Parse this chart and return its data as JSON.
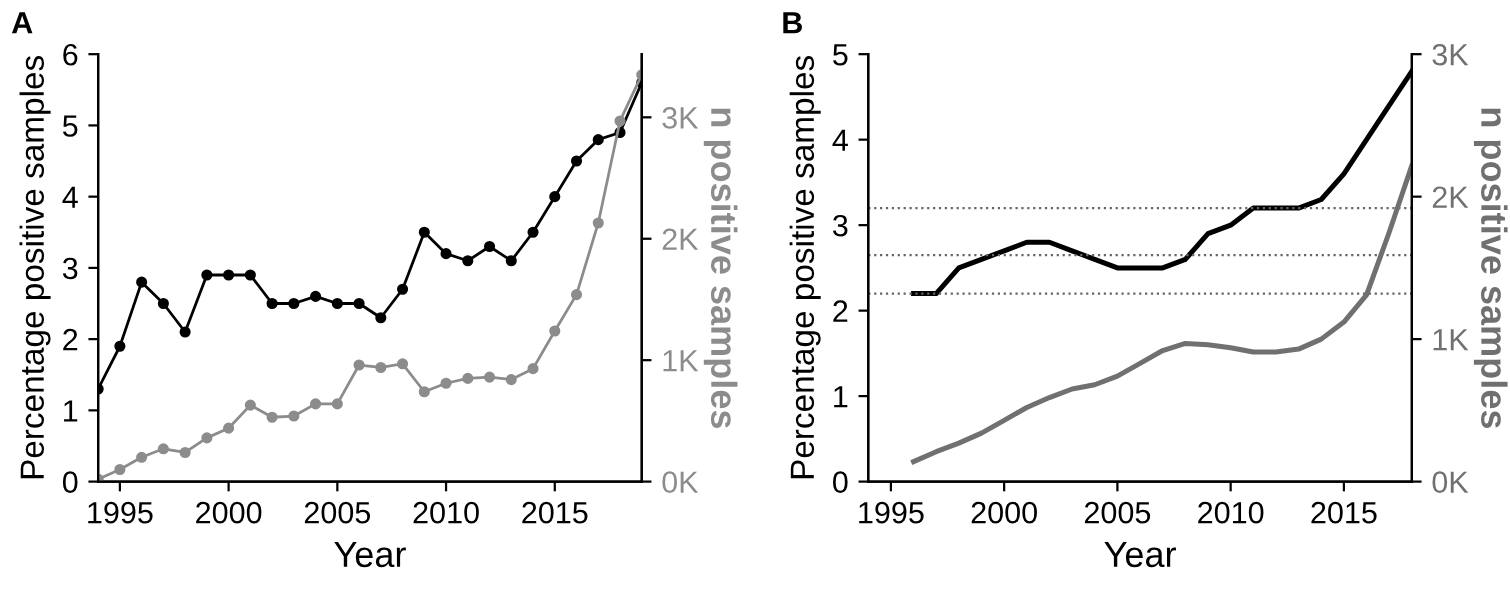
{
  "chart_data": [
    {
      "type": "line",
      "title": "A",
      "xlabel": "Year",
      "ylabel": "Percentage positive samples",
      "y2label": "n positive samples",
      "xlim": [
        1994,
        2019
      ],
      "xticks": [
        1995,
        2000,
        2005,
        2010,
        2015
      ],
      "ylim": [
        0,
        6
      ],
      "yticks": [
        0,
        1,
        2,
        3,
        4,
        5,
        6
      ],
      "y2lim": [
        0,
        3520
      ],
      "y2ticks": [
        {
          "value": 0,
          "label": "0K"
        },
        {
          "value": 1000,
          "label": "1K"
        },
        {
          "value": 2000,
          "label": "2K"
        },
        {
          "value": 3000,
          "label": "3K"
        }
      ],
      "x": [
        1994,
        1995,
        1996,
        1997,
        1998,
        1999,
        2000,
        2001,
        2002,
        2003,
        2004,
        2005,
        2006,
        2007,
        2008,
        2009,
        2010,
        2011,
        2012,
        2013,
        2014,
        2015,
        2016,
        2017,
        2018,
        2019
      ],
      "marker": "circle",
      "line_style": "solid",
      "grid": false,
      "legend": false,
      "series": [
        {
          "color": "#000000",
          "values": [
            1.3,
            1.9,
            2.8,
            2.5,
            2.1,
            2.9,
            2.9,
            2.9,
            2.5,
            2.5,
            2.6,
            2.5,
            2.5,
            2.3,
            2.7,
            3.5,
            3.2,
            3.1,
            3.3,
            3.1,
            3.5,
            4.0,
            4.5,
            4.8,
            4.9,
            5.6
          ]
        },
        {
          "color": "#8c8c8c",
          "axis": "y2",
          "values": [
            20,
            100,
            200,
            270,
            240,
            360,
            440,
            630,
            530,
            540,
            640,
            640,
            960,
            940,
            970,
            740,
            810,
            850,
            860,
            840,
            930,
            1240,
            1540,
            2130,
            2970,
            3350
          ]
        }
      ]
    },
    {
      "type": "line",
      "title": "B",
      "xlabel": "Year",
      "ylabel": "Percentage positive samples",
      "y2label": "n positive samples",
      "xlim": [
        1994,
        2018
      ],
      "xticks": [
        1995,
        2000,
        2005,
        2010,
        2015
      ],
      "ylim": [
        0,
        5
      ],
      "yticks": [
        0,
        1,
        2,
        3,
        4,
        5
      ],
      "y2lim": [
        0,
        3000
      ],
      "y2ticks": [
        {
          "value": 0,
          "label": "0K"
        },
        {
          "value": 1000,
          "label": "1K"
        },
        {
          "value": 2000,
          "label": "2K"
        },
        {
          "value": 3000,
          "label": "3K"
        }
      ],
      "x": [
        1996,
        1997,
        1998,
        1999,
        2000,
        2001,
        2002,
        2003,
        2004,
        2005,
        2006,
        2007,
        2008,
        2009,
        2010,
        2011,
        2012,
        2013,
        2014,
        2015,
        2016,
        2017,
        2018
      ],
      "marker": "none",
      "line_style": "solid",
      "grid": false,
      "legend": false,
      "series": [
        {
          "color": "#000000",
          "values": [
            2.2,
            2.2,
            2.5,
            2.6,
            2.7,
            2.8,
            2.8,
            2.7,
            2.6,
            2.5,
            2.5,
            2.5,
            2.6,
            2.9,
            3.0,
            3.2,
            3.2,
            3.2,
            3.3,
            3.6,
            4.0,
            4.4,
            4.8
          ]
        },
        {
          "color": "#707070",
          "axis": "y2",
          "values": [
            140,
            210,
            270,
            340,
            430,
            520,
            590,
            650,
            680,
            740,
            830,
            920,
            970,
            960,
            940,
            910,
            910,
            930,
            1000,
            1120,
            1310,
            1750,
            2220
          ]
        }
      ],
      "ref_lines": [
        {
          "axis": "y",
          "value": 3.2,
          "color": "#666666",
          "line_style": "dotted"
        },
        {
          "axis": "y",
          "value": 2.65,
          "color": "#666666",
          "line_style": "dotted"
        },
        {
          "axis": "y",
          "value": 2.2,
          "color": "#666666",
          "line_style": "dotted"
        }
      ]
    }
  ]
}
